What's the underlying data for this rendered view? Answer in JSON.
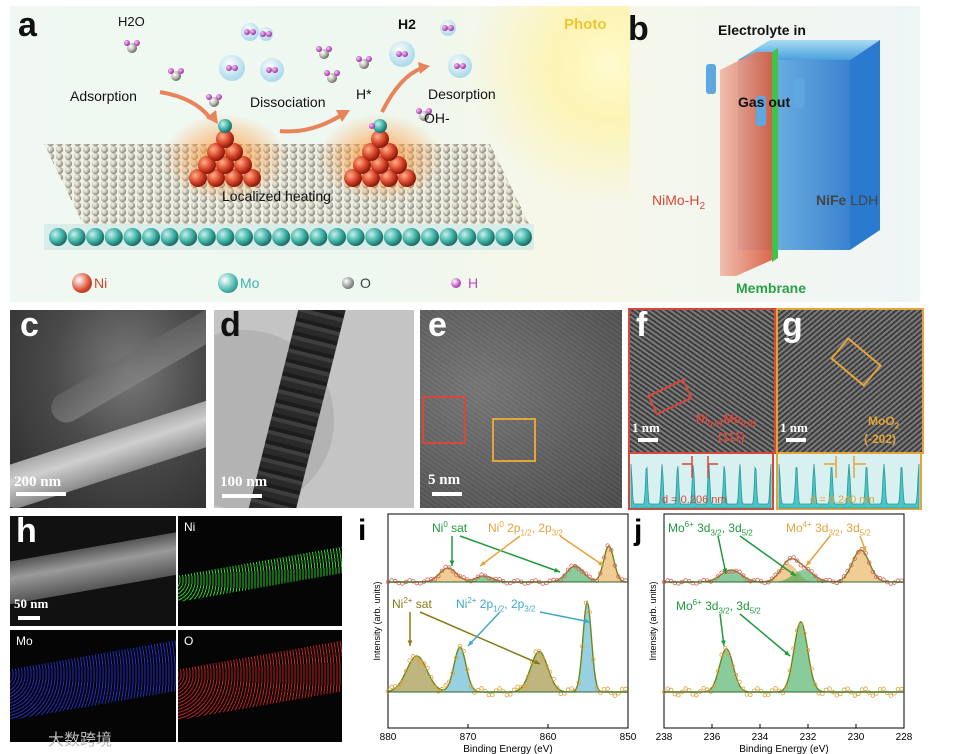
{
  "panels": {
    "a": {
      "letter": "a",
      "h2o": "H2O",
      "h2": "H2",
      "adsorption": "Adsorption",
      "dissociation": "Dissociation",
      "desorption": "Desorption",
      "hstar": "H*",
      "oh": "OH-",
      "localized_heating": "Localized heating",
      "photo": "Photo",
      "legend": [
        {
          "name": "Ni",
          "color": "#d8452a"
        },
        {
          "name": "Mo",
          "color": "#3fb3a8"
        },
        {
          "name": "O",
          "color": "#8a8a8a"
        },
        {
          "name": "H",
          "color": "#c04ac4"
        }
      ]
    },
    "b": {
      "letter": "b",
      "electrolyte_in": "Electrolyte in",
      "gas_out": "Gas out",
      "nimo": "NiMo-H2",
      "nife_a": "NiFe",
      "nife_b": "LDH",
      "membrane": "Membrane"
    },
    "c": {
      "letter": "c",
      "scale": "200 nm"
    },
    "d": {
      "letter": "d",
      "scale": "100 nm"
    },
    "e": {
      "letter": "e",
      "scale": "5 nm"
    },
    "f": {
      "letter": "f",
      "scale": "1 nm",
      "phase": "Ni0.91Mo0.09",
      "plane": "(111)",
      "d": "d = 0.206 nm"
    },
    "g": {
      "letter": "g",
      "scale": "1 nm",
      "phase": "MoO2",
      "plane": "(-202)",
      "d": "d = 0.240 nm"
    },
    "h": {
      "letter": "h",
      "scale": "50 nm",
      "maps": [
        {
          "name": "Ni",
          "color": "#1fd11f"
        },
        {
          "name": "Mo",
          "color": "#2233e0"
        },
        {
          "name": "O",
          "color": "#e02222"
        }
      ]
    },
    "i": {
      "letter": "i",
      "ylabel": "Intensity (arb. units)",
      "xlabel": "Binding Energy (eV)",
      "ni0_sat": "Ni0 sat",
      "ni0_2p": "Ni0 2p1/2, 2p3/2",
      "ni2_sat": "Ni2+ sat",
      "ni2_2p": "Ni2+ 2p1/2, 2p3/2",
      "xticks": [
        "880",
        "870",
        "860",
        "850"
      ]
    },
    "j": {
      "letter": "j",
      "ylabel": "Intensity (arb. units)",
      "xlabel": "Binding Energy (eV)",
      "mo6_top": "Mo6+ 3d3/2, 3d5/2",
      "mo4_top": "Mo4+ 3d3/2, 3d5/2",
      "mo6_bottom": "Mo6+ 3d3/2, 3d5/2",
      "xticks": [
        "238",
        "236",
        "234",
        "232",
        "230",
        "228"
      ]
    }
  },
  "watermark": "大数跨境",
  "colors": {
    "ni": "#d8452a",
    "mo": "#3fb3a8",
    "green": "#1e9a3a",
    "orange": "#e6a23c",
    "blue": "#3fa9c9",
    "olive": "#8a7a16",
    "red_box": "#d9463a",
    "orange_box": "#e3a43a"
  }
}
